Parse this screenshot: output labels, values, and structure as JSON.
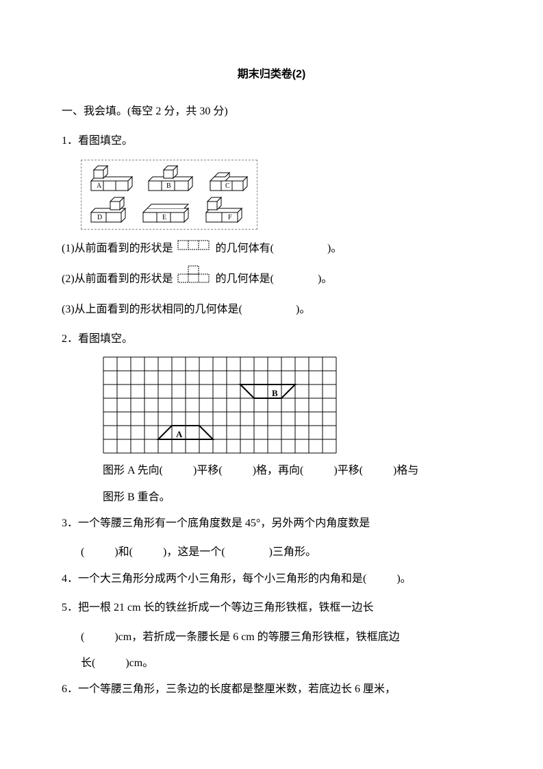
{
  "title": "期末归类卷(2)",
  "section1": {
    "header": "一、我会填。(每空 2 分，共 30 分)",
    "q1": {
      "stem": "1．看图填空。",
      "cubes": {
        "labels": [
          "A",
          "B",
          "C",
          "D",
          "E",
          "F"
        ],
        "border_color": "#888888"
      },
      "sub1_pre": "(1)从前面看到的形状是",
      "sub1_post": "的几何体有(",
      "sub1_end": ")。",
      "sub2_pre": "(2)从前面看到的形状是",
      "sub2_post": "的几何体是(",
      "sub2_end": ")。",
      "sub3_pre": "(3)从上面看到的形状相同的几何体是(",
      "sub3_end": ")。"
    },
    "q2": {
      "stem": "2．看图填空。",
      "grid": {
        "cols": 17,
        "rows": 7,
        "cell": 20,
        "line_color": "#000000",
        "label_a": "A",
        "label_b": "B",
        "a_poly": [
          [
            4,
            6
          ],
          [
            8,
            6
          ],
          [
            7,
            5
          ],
          [
            5,
            5
          ]
        ],
        "b_poly": [
          [
            10,
            2
          ],
          [
            14,
            2
          ],
          [
            13,
            3
          ],
          [
            11,
            3
          ]
        ]
      },
      "line1_a": "图形 A 先向(",
      "line1_b": ")平移(",
      "line1_c": ")格，再向(",
      "line1_d": ")平移(",
      "line1_e": ")格与",
      "line2": "图形 B 重合。"
    },
    "q3_a": "3．一个等腰三角形有一个底角度数是 45°，另外两个内角度数是",
    "q3_b_1": "(",
    "q3_b_2": ")和(",
    "q3_b_3": ")，这是一个(",
    "q3_b_4": ")三角形。",
    "q4_a": "4．一个大三角形分成两个小三角形，每个小三角形的内角和是(",
    "q4_b": ")。",
    "q5_a": "5．把一根 21 cm 长的铁丝折成一个等边三角形铁框，铁框一边长",
    "q5_b_1": "(",
    "q5_b_2": ")cm，若折成一条腰长是 6 cm 的等腰三角形铁框，铁框底边",
    "q5_c_1": "长(",
    "q5_c_2": ")cm。",
    "q6": "6．一个等腰三角形，三条边的长度都是整厘米数，若底边长 6 厘米，"
  }
}
